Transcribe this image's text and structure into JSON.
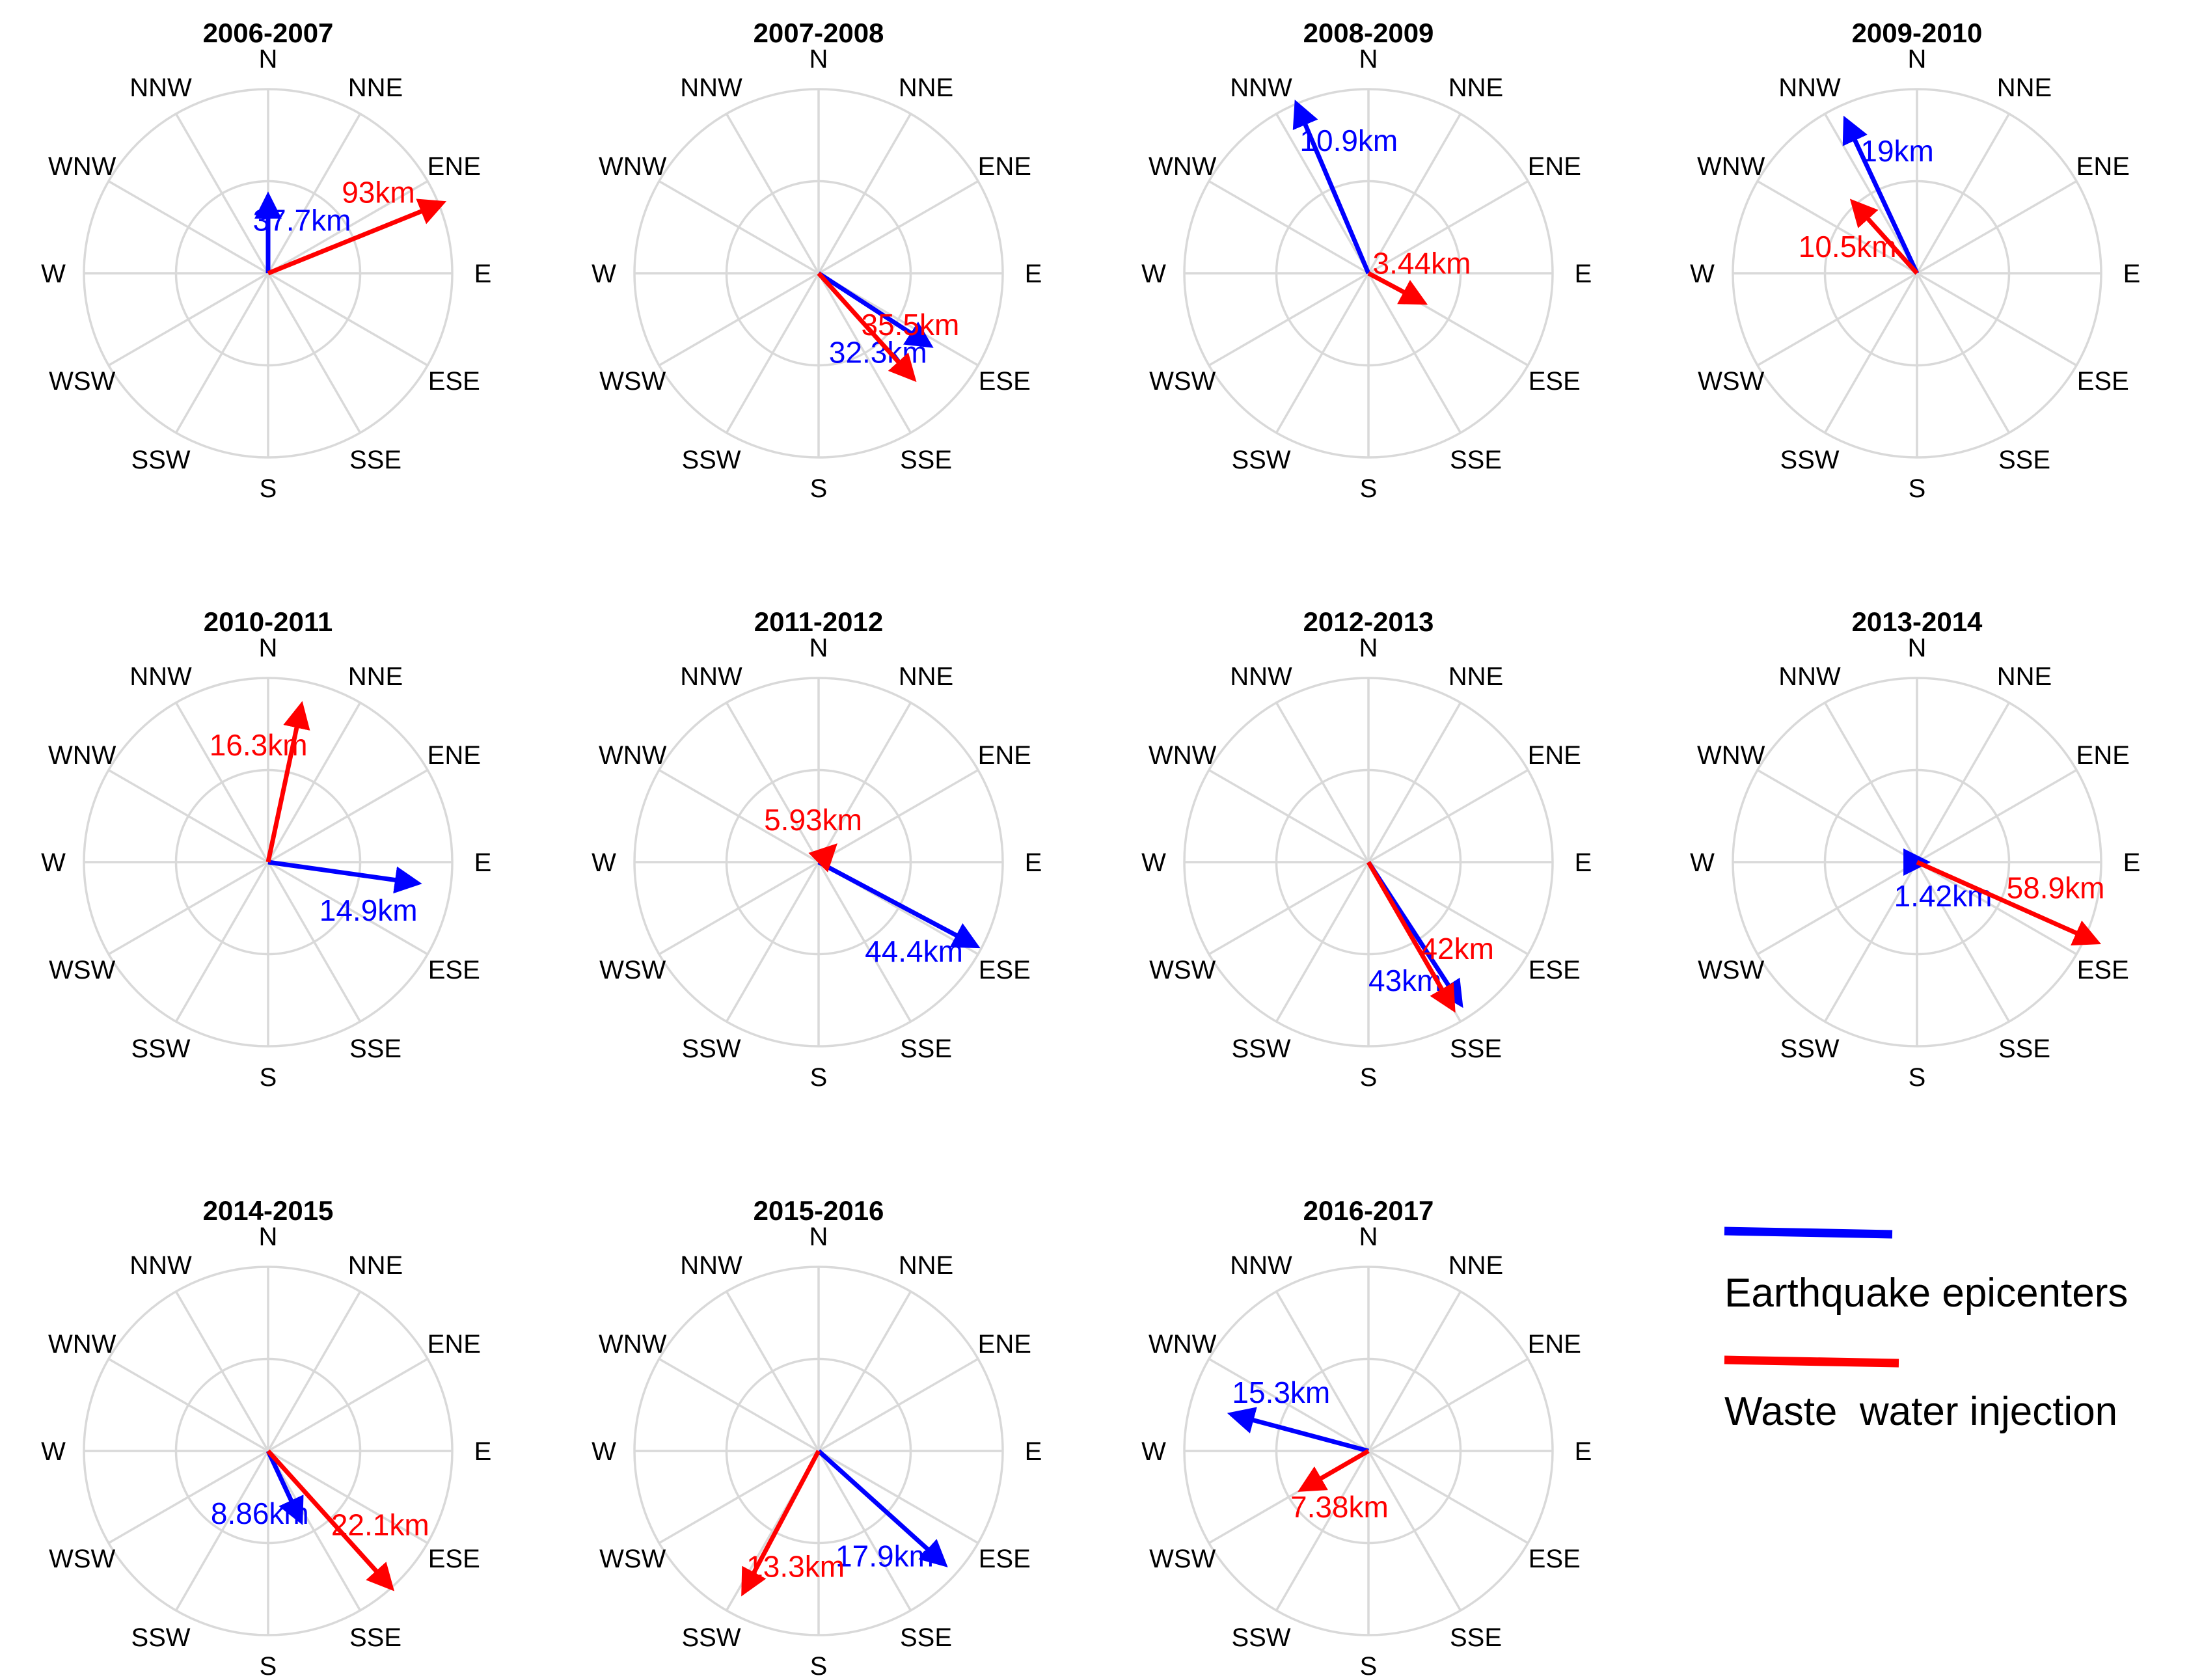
{
  "chart_data": {
    "type": "polar-vector",
    "directions": [
      "N",
      "NNE",
      "ENE",
      "E",
      "ESE",
      "SSE",
      "S",
      "SSW",
      "WSW",
      "W",
      "WNW",
      "NNW"
    ],
    "units": "km",
    "colors": {
      "earthquake": "#0000ff",
      "injection": "#ff0000",
      "grid": "#d9d9d9"
    },
    "legend": {
      "earthquake_label": "Earthquake epicenters",
      "injection_label": "Waste  water injection"
    },
    "panels": [
      {
        "title": "2006-2007",
        "earthquake": {
          "label": "37.7km",
          "angle_deg": 0,
          "length": 0.4
        },
        "injection": {
          "label": "93km",
          "angle_deg": 68,
          "length": 1.0
        }
      },
      {
        "title": "2007-2008",
        "earthquake": {
          "label": "32.3km",
          "angle_deg": 123,
          "length": 0.7
        },
        "injection": {
          "label": "35.5km",
          "angle_deg": 138,
          "length": 0.75
        }
      },
      {
        "title": "2008-2009",
        "earthquake": {
          "label": "10.9km",
          "angle_deg": 337,
          "length": 0.98
        },
        "injection": {
          "label": "3.44km",
          "angle_deg": 118,
          "length": 0.32
        }
      },
      {
        "title": "2009-2010",
        "earthquake": {
          "label": "19km",
          "angle_deg": 335,
          "length": 0.9
        },
        "injection": {
          "label": "10.5km",
          "angle_deg": 318,
          "length": 0.5
        }
      },
      {
        "title": "2010-2011",
        "earthquake": {
          "label": "14.9km",
          "angle_deg": 98,
          "length": 0.8
        },
        "injection": {
          "label": "16.3km",
          "angle_deg": 12,
          "length": 0.85
        }
      },
      {
        "title": "2011-2012",
        "earthquake": {
          "label": "44.4km",
          "angle_deg": 118,
          "length": 0.95
        },
        "injection": {
          "label": "5.93km",
          "angle_deg": 45,
          "length": 0.1
        }
      },
      {
        "title": "2012-2013",
        "earthquake": {
          "label": "43km",
          "angle_deg": 147,
          "length": 0.9
        },
        "injection": {
          "label": "42km",
          "angle_deg": 150,
          "length": 0.9
        }
      },
      {
        "title": "2013-2014",
        "earthquake": {
          "label": "1.42km",
          "angle_deg": 90,
          "length": 0.03
        },
        "injection": {
          "label": "58.9km",
          "angle_deg": 114,
          "length": 1.05
        }
      },
      {
        "title": "2014-2015",
        "earthquake": {
          "label": "8.86km",
          "angle_deg": 155,
          "length": 0.4
        },
        "injection": {
          "label": "22.1km",
          "angle_deg": 138,
          "length": 0.98
        }
      },
      {
        "title": "2015-2016",
        "earthquake": {
          "label": "17.9km",
          "angle_deg": 132,
          "length": 0.9
        },
        "injection": {
          "label": "13.3km",
          "angle_deg": 208,
          "length": 0.85
        }
      },
      {
        "title": "2016-2017",
        "earthquake": {
          "label": "15.3km",
          "angle_deg": 285,
          "length": 0.75
        },
        "injection": {
          "label": "7.38km",
          "angle_deg": 240,
          "length": 0.4
        }
      }
    ]
  }
}
